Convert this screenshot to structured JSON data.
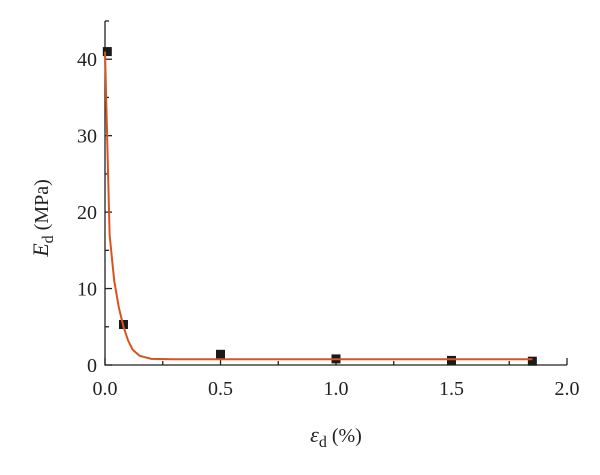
{
  "chart_data": {
    "type": "scatter",
    "xlabel": {
      "symbol": "ε",
      "subscript": "d",
      "unit": "(%)"
    },
    "ylabel": {
      "symbol": "E",
      "subscript": "d",
      "unit": "(MPa)"
    },
    "xlim": [
      0,
      2
    ],
    "ylim": [
      0,
      45
    ],
    "xticks": [
      {
        "value": 0,
        "label": "0.0"
      },
      {
        "value": 0.5,
        "label": "0.5"
      },
      {
        "value": 1,
        "label": "1.0"
      },
      {
        "value": 1.5,
        "label": "1.5"
      },
      {
        "value": 2,
        "label": "2.0"
      }
    ],
    "yticks": [
      0,
      10,
      20,
      30,
      40
    ],
    "series": [
      {
        "style": "marker",
        "marker": "square",
        "color": "#1a1a1a",
        "x": [
          0.01,
          0.08,
          0.5,
          1.0,
          1.5,
          1.85
        ],
        "values": [
          41,
          5.3,
          1.4,
          0.8,
          0.6,
          0.5
        ]
      },
      {
        "style": "line",
        "color": "#d9531e",
        "x": [
          0,
          0.02,
          0.04,
          0.06,
          0.08,
          0.1,
          0.12,
          0.15,
          0.2,
          0.3,
          0.5,
          1.0,
          1.5,
          1.85
        ],
        "values": [
          41,
          17,
          11,
          7.5,
          5.0,
          3.2,
          2.0,
          1.2,
          0.8,
          0.75,
          0.75,
          0.75,
          0.75,
          0.75
        ]
      }
    ]
  }
}
